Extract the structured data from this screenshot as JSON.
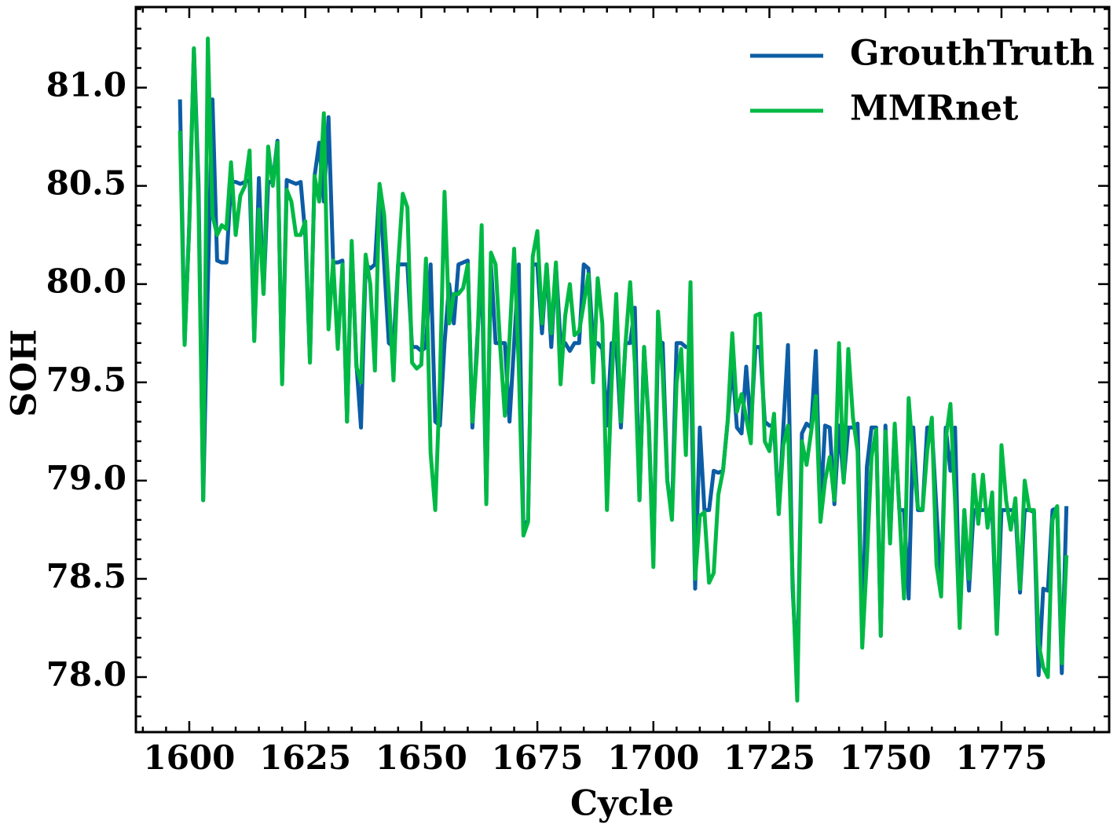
{
  "chart_data": {
    "type": "line",
    "xlabel": "Cycle",
    "ylabel": "SOH",
    "x": [
      1598,
      1599,
      1600,
      1601,
      1602,
      1603,
      1604,
      1605,
      1606,
      1607,
      1608,
      1609,
      1610,
      1611,
      1612,
      1613,
      1614,
      1615,
      1616,
      1617,
      1618,
      1619,
      1620,
      1621,
      1622,
      1623,
      1624,
      1625,
      1626,
      1627,
      1628,
      1629,
      1630,
      1631,
      1632,
      1633,
      1634,
      1635,
      1636,
      1637,
      1638,
      1639,
      1640,
      1641,
      1642,
      1643,
      1644,
      1645,
      1646,
      1647,
      1648,
      1649,
      1650,
      1651,
      1652,
      1653,
      1654,
      1655,
      1656,
      1657,
      1658,
      1659,
      1660,
      1661,
      1662,
      1663,
      1664,
      1665,
      1666,
      1667,
      1668,
      1669,
      1670,
      1671,
      1672,
      1673,
      1674,
      1675,
      1676,
      1677,
      1678,
      1679,
      1680,
      1681,
      1682,
      1683,
      1684,
      1685,
      1686,
      1687,
      1688,
      1689,
      1690,
      1691,
      1692,
      1693,
      1694,
      1695,
      1696,
      1697,
      1698,
      1699,
      1700,
      1701,
      1702,
      1703,
      1704,
      1705,
      1706,
      1707,
      1708,
      1709,
      1710,
      1711,
      1712,
      1713,
      1714,
      1715,
      1716,
      1717,
      1718,
      1719,
      1720,
      1721,
      1722,
      1723,
      1724,
      1725,
      1726,
      1727,
      1728,
      1729,
      1730,
      1731,
      1732,
      1733,
      1734,
      1735,
      1736,
      1737,
      1738,
      1739,
      1740,
      1741,
      1742,
      1743,
      1744,
      1745,
      1746,
      1747,
      1748,
      1749,
      1750,
      1751,
      1752,
      1753,
      1754,
      1755,
      1756,
      1757,
      1758,
      1759,
      1760,
      1761,
      1762,
      1763,
      1764,
      1765,
      1766,
      1767,
      1768,
      1769,
      1770,
      1771,
      1772,
      1773,
      1774,
      1775,
      1776,
      1777,
      1778,
      1779,
      1780,
      1781,
      1782,
      1783,
      1784,
      1785,
      1786,
      1787,
      1788,
      1789
    ],
    "series": [
      {
        "name": "GrouthTruth",
        "color": "#0C5DA5",
        "values": [
          80.94,
          79.7,
          80.3,
          81.2,
          80.5,
          78.9,
          80.0,
          80.94,
          80.12,
          80.11,
          80.11,
          80.52,
          80.52,
          80.51,
          80.52,
          80.53,
          79.72,
          80.54,
          79.95,
          80.52,
          80.52,
          80.73,
          79.5,
          80.53,
          80.52,
          80.51,
          80.52,
          80.25,
          79.61,
          80.55,
          80.72,
          80.42,
          80.85,
          80.11,
          80.11,
          80.12,
          79.3,
          80.2,
          79.6,
          79.27,
          80.1,
          80.08,
          80.1,
          80.5,
          80.1,
          79.7,
          79.68,
          80.1,
          80.1,
          80.1,
          79.68,
          79.68,
          79.66,
          79.68,
          80.1,
          79.3,
          79.28,
          79.7,
          80.0,
          79.8,
          80.1,
          80.11,
          80.12,
          79.27,
          79.7,
          80.1,
          78.9,
          80.1,
          79.7,
          79.7,
          79.7,
          79.3,
          79.7,
          80.1,
          78.75,
          78.8,
          80.1,
          80.1,
          79.75,
          80.1,
          79.68,
          80.1,
          79.7,
          79.7,
          79.66,
          79.7,
          79.7,
          80.1,
          80.08,
          79.7,
          79.7,
          79.67,
          79.28,
          79.7,
          79.7,
          79.27,
          79.7,
          79.7,
          79.88,
          78.9,
          79.68,
          79.3,
          78.6,
          79.71,
          79.7,
          79.0,
          78.82,
          79.7,
          79.7,
          79.68,
          79.68,
          78.45,
          79.27,
          78.85,
          78.85,
          79.05,
          79.04,
          79.05,
          79.3,
          79.6,
          79.27,
          79.24,
          79.58,
          79.27,
          79.68,
          79.68,
          79.3,
          79.28,
          79.28,
          78.83,
          79.27,
          79.69,
          78.45,
          78.0,
          79.24,
          79.29,
          79.27,
          79.66,
          78.85,
          79.28,
          79.27,
          78.88,
          79.28,
          79.0,
          79.27,
          79.27,
          79.29,
          78.2,
          79.07,
          79.27,
          79.27,
          78.21,
          79.28,
          78.7,
          79.27,
          78.85,
          78.85,
          78.4,
          79.27,
          78.85,
          78.85,
          79.27,
          79.27,
          78.85,
          78.45,
          79.27,
          79.05,
          79.27,
          78.3,
          78.85,
          78.44,
          78.85,
          78.85,
          78.85,
          78.85,
          78.85,
          78.22,
          78.85,
          78.85,
          78.85,
          78.85,
          78.43,
          78.85,
          78.85,
          78.84,
          78.01,
          78.45,
          78.44,
          78.85,
          78.86,
          78.02,
          78.87
        ]
      },
      {
        "name": "MMRnet",
        "color": "#00B945",
        "values": [
          80.78,
          79.69,
          80.3,
          81.2,
          80.4,
          78.9,
          81.25,
          80.35,
          80.25,
          80.3,
          80.28,
          80.62,
          80.25,
          80.45,
          80.5,
          80.68,
          79.71,
          80.38,
          79.95,
          80.7,
          80.5,
          80.72,
          79.49,
          80.48,
          80.42,
          80.25,
          80.25,
          80.32,
          79.6,
          80.55,
          80.42,
          80.87,
          79.77,
          80.12,
          79.67,
          80.1,
          79.3,
          80.22,
          79.58,
          79.5,
          80.15,
          80.0,
          79.56,
          80.51,
          80.35,
          79.95,
          79.51,
          80.1,
          80.46,
          80.39,
          79.6,
          79.57,
          79.59,
          80.13,
          79.14,
          78.85,
          79.5,
          80.47,
          79.8,
          79.95,
          79.95,
          79.98,
          80.1,
          79.3,
          79.65,
          80.3,
          78.88,
          80.16,
          80.1,
          79.68,
          79.33,
          79.72,
          80.18,
          79.58,
          78.72,
          78.79,
          80.14,
          80.27,
          79.8,
          80.1,
          79.75,
          80.11,
          79.49,
          79.84,
          80.0,
          79.74,
          79.76,
          79.9,
          80.05,
          79.5,
          80.03,
          79.8,
          78.85,
          79.5,
          79.95,
          79.3,
          79.7,
          80.01,
          79.6,
          78.9,
          79.68,
          79.28,
          78.56,
          79.86,
          79.55,
          79.0,
          78.8,
          79.5,
          79.67,
          79.13,
          80.01,
          78.5,
          78.82,
          78.84,
          78.48,
          78.53,
          78.93,
          79.05,
          79.3,
          79.75,
          79.35,
          79.44,
          79.32,
          79.19,
          79.84,
          79.85,
          79.2,
          79.15,
          79.34,
          78.83,
          79.18,
          79.28,
          78.5,
          77.88,
          79.2,
          79.08,
          79.25,
          79.43,
          78.79,
          79.0,
          79.12,
          78.9,
          79.7,
          78.99,
          79.67,
          79.32,
          79.15,
          78.15,
          78.6,
          79.12,
          79.26,
          78.21,
          79.25,
          78.68,
          79.29,
          78.85,
          78.4,
          79.42,
          79.1,
          78.86,
          78.85,
          79.15,
          79.32,
          78.57,
          78.41,
          79.21,
          79.39,
          78.9,
          78.25,
          78.85,
          78.5,
          79.03,
          78.78,
          79.03,
          78.76,
          78.94,
          78.22,
          79.18,
          78.9,
          78.75,
          78.91,
          78.45,
          79.0,
          78.85,
          78.85,
          78.17,
          78.05,
          78.0,
          78.8,
          78.87,
          78.07,
          78.62
        ]
      }
    ],
    "xlim": [
      1588.5,
      1798.2
    ],
    "xticks": [
      1600,
      1625,
      1650,
      1675,
      1700,
      1725,
      1750,
      1775
    ],
    "xminorticks": [
      1590,
      1595,
      1605,
      1610,
      1615,
      1620,
      1630,
      1635,
      1640,
      1645,
      1655,
      1660,
      1665,
      1670,
      1680,
      1685,
      1690,
      1695,
      1705,
      1710,
      1715,
      1720,
      1730,
      1735,
      1740,
      1745,
      1755,
      1760,
      1765,
      1770,
      1780,
      1785,
      1790,
      1795
    ],
    "ylim": [
      77.72,
      81.41
    ],
    "yticks": [
      {
        "value": 78,
        "label": "78.0"
      },
      {
        "value": 78.5,
        "label": "78.5"
      },
      {
        "value": 79,
        "label": "79.0"
      },
      {
        "value": 79.5,
        "label": "79.5"
      },
      {
        "value": 80,
        "label": "80.0"
      },
      {
        "value": 80.5,
        "label": "80.5"
      },
      {
        "value": 81,
        "label": "81.0"
      }
    ],
    "yminorticks": [
      77.8,
      77.9,
      78.1,
      78.2,
      78.3,
      78.4,
      78.6,
      78.7,
      78.8,
      78.9,
      79.1,
      79.2,
      79.3,
      79.4,
      79.6,
      79.7,
      79.8,
      79.9,
      80.1,
      80.2,
      80.3,
      80.4,
      80.6,
      80.7,
      80.8,
      80.9,
      81.1,
      81.2,
      81.3,
      81.4
    ],
    "legend": "upper right",
    "grid": false
  }
}
